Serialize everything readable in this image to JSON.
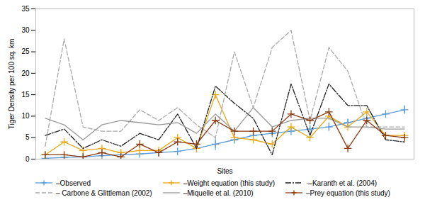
{
  "chart_data": {
    "type": "line",
    "x": [
      1,
      2,
      3,
      4,
      5,
      6,
      7,
      8,
      9,
      10,
      11,
      12,
      13,
      14,
      15,
      16,
      17,
      18,
      19,
      20
    ],
    "xlabel": "Sites",
    "ylabel": "Tiger Density per 100 sq. km",
    "xlim": [
      0.5,
      20.5
    ],
    "xticks": [],
    "ylim": [
      0,
      35
    ],
    "yticks": [
      0,
      5,
      10,
      15,
      20,
      25,
      30,
      35
    ],
    "grid": false,
    "legend": "bottom",
    "tick_labels": "y",
    "series": [
      {
        "name": "–Observed",
        "color": "#5B9BD5",
        "marker": "plus",
        "line_style": "solid",
        "values": [
          0.2,
          0.4,
          0.5,
          0.8,
          1.0,
          1.2,
          1.5,
          1.8,
          2.5,
          3.5,
          4.5,
          5.5,
          6.0,
          6.5,
          7.0,
          7.5,
          8.5,
          9.5,
          10.5,
          11.5
        ],
        "error_lo": [
          0.0,
          0.0,
          0.0,
          0.0,
          0.0,
          0.0,
          0.0,
          0.0,
          0.5,
          1.5,
          0.0,
          1.0,
          0.0,
          0.0,
          0.8,
          1.0,
          0.8,
          0.0,
          0.0,
          1.0
        ],
        "error_hi": [
          0.0,
          0.0,
          0.0,
          0.0,
          0.0,
          0.0,
          0.0,
          0.0,
          0.5,
          1.5,
          0.0,
          1.0,
          0.0,
          0.0,
          0.8,
          1.0,
          0.8,
          0.0,
          0.0,
          1.0
        ]
      },
      {
        "name": "–Weight equation (this study)",
        "color": "#E6A817",
        "marker": "plus",
        "line_style": "solid",
        "values": [
          1.0,
          4.0,
          2.0,
          2.5,
          1.5,
          2.0,
          2.0,
          5.0,
          2.5,
          15.0,
          5.0,
          4.5,
          3.5,
          7.5,
          5.0,
          10.0,
          7.5,
          11.0,
          5.5,
          5.5
        ]
      },
      {
        "name": "·–Karanth et al. (2004)",
        "color": "#222222",
        "line_style": "dashdot",
        "values": [
          5.5,
          7.0,
          2.5,
          4.5,
          3.0,
          6.0,
          4.5,
          10.5,
          2.5,
          17.0,
          13.0,
          9.5,
          1.0,
          17.5,
          5.5,
          17.5,
          12.5,
          12.5,
          4.5,
          4.0
        ]
      },
      {
        "name": "– Carbone & Glittleman (2002)",
        "color": "#AAAAAA",
        "line_style": "dashed",
        "values": [
          3.0,
          28.0,
          7.5,
          6.5,
          6.5,
          11.5,
          9.0,
          12.0,
          8.0,
          5.0,
          25.0,
          12.0,
          26.0,
          30.0,
          9.0,
          26.0,
          20.5,
          7.5,
          7.5,
          7.5
        ]
      },
      {
        "name": "–Miquelle et al. (2010)",
        "color": "#999999",
        "line_style": "solid",
        "values": [
          9.5,
          8.0,
          4.5,
          8.0,
          9.0,
          8.5,
          8.0,
          8.5,
          6.0,
          10.5,
          6.5,
          12.0,
          7.5,
          9.0,
          9.5,
          9.5,
          7.5,
          7.5,
          7.0,
          7.0
        ]
      },
      {
        "name": "–Prey equation (this study)",
        "color": "#8B3A10",
        "marker": "plus",
        "line_style": "solid",
        "values": [
          1.0,
          1.0,
          0.5,
          1.5,
          0.5,
          3.5,
          1.5,
          4.0,
          3.5,
          9.0,
          6.5,
          6.5,
          6.5,
          10.5,
          9.0,
          11.0,
          2.5,
          9.0,
          5.5,
          5.0
        ]
      }
    ]
  }
}
